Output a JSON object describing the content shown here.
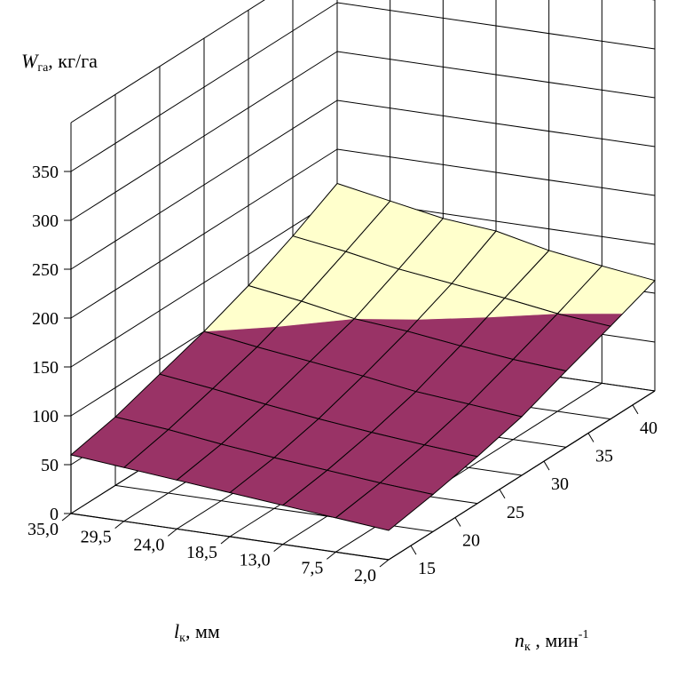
{
  "chart_data": {
    "type": "surface",
    "title": "",
    "z_axis": {
      "label_var": "W",
      "label_sub": "га",
      "label_unit": ", кг/га",
      "ticks": [
        0,
        50,
        100,
        150,
        200,
        250,
        300,
        350
      ],
      "range": [
        0,
        400
      ]
    },
    "x_axis": {
      "label_var": "l",
      "label_sub": "к",
      "label_unit": ", мм",
      "ticks": [
        35.0,
        29.5,
        24.0,
        18.5,
        13.0,
        7.5,
        2.0
      ],
      "tick_labels": [
        "35,0",
        "29,5",
        "24,0",
        "18,5",
        "13,0",
        "7,5",
        "2,0"
      ],
      "range": [
        35.0,
        2.0
      ]
    },
    "y_axis": {
      "label_var": "n",
      "label_sub": "к",
      "label_unit": " , мин",
      "label_sup": "-1",
      "ticks": [
        15,
        20,
        25,
        30,
        35,
        40
      ],
      "tick_labels": [
        "15",
        "20",
        "25",
        "30",
        "35",
        "40"
      ],
      "range": [
        12.5,
        42.5
      ]
    },
    "grid": true,
    "surface": {
      "l_values": [
        35.0,
        29.5,
        24.0,
        18.5,
        13.0,
        7.5,
        2.0
      ],
      "n_values": [
        12.5,
        17.5,
        22.5,
        27.5,
        32.5,
        37.5,
        42.5
      ],
      "z": [
        [
          60,
          70,
          85,
          100,
          118,
          140,
          165
        ],
        [
          55,
          65,
          78,
          92,
          110,
          132,
          155
        ],
        [
          50,
          58,
          70,
          85,
          100,
          122,
          145
        ],
        [
          45,
          52,
          63,
          78,
          95,
          115,
          140
        ],
        [
          40,
          47,
          57,
          70,
          88,
          108,
          128
        ],
        [
          35,
          42,
          52,
          65,
          82,
          100,
          120
        ],
        [
          30,
          38,
          48,
          60,
          78,
          95,
          113
        ]
      ]
    },
    "color_bands": [
      {
        "from": 0,
        "to": 100,
        "color": "#993366"
      },
      {
        "from": 100,
        "to": 175,
        "color": "#FFFFCC"
      },
      {
        "from": 175,
        "to": 250,
        "color": "#CCFFFF"
      },
      {
        "from": 250,
        "to": 325,
        "color": "#660066"
      },
      {
        "from": 325,
        "to": 400,
        "color": "#FF8080"
      }
    ]
  }
}
